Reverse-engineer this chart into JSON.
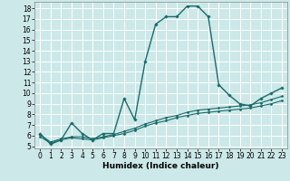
{
  "title": "",
  "xlabel": "Humidex (Indice chaleur)",
  "bg_color": "#cce8e8",
  "grid_color": "#b0d8d8",
  "line_color": "#1a6b6b",
  "xlim": [
    -0.5,
    23.5
  ],
  "ylim": [
    4.8,
    18.6
  ],
  "yticks": [
    5,
    6,
    7,
    8,
    9,
    10,
    11,
    12,
    13,
    14,
    15,
    16,
    17,
    18
  ],
  "xticks": [
    0,
    1,
    2,
    3,
    4,
    5,
    6,
    7,
    8,
    9,
    10,
    11,
    12,
    13,
    14,
    15,
    16,
    17,
    18,
    19,
    20,
    21,
    22,
    23
  ],
  "series": [
    {
      "x": [
        0,
        1,
        2,
        3,
        4,
        5,
        6,
        7,
        8,
        9,
        10,
        11,
        12,
        13,
        14,
        15,
        16,
        17,
        18,
        19,
        20,
        21,
        22,
        23
      ],
      "y": [
        6.2,
        5.2,
        5.6,
        7.2,
        6.2,
        5.6,
        6.2,
        6.2,
        9.5,
        7.5,
        13.0,
        16.5,
        17.2,
        17.2,
        18.2,
        18.2,
        17.2,
        10.8,
        9.8,
        9.0,
        8.8,
        9.5,
        10.0,
        10.5
      ],
      "marker": "D",
      "markersize": 1.8,
      "linewidth": 1.0
    },
    {
      "x": [
        0,
        1,
        2,
        3,
        4,
        5,
        6,
        7,
        8,
        9,
        10,
        11,
        12,
        13,
        14,
        15,
        16,
        17,
        18,
        19,
        20,
        21,
        22,
        23
      ],
      "y": [
        6.1,
        5.4,
        5.7,
        5.9,
        5.9,
        5.7,
        5.9,
        6.1,
        6.4,
        6.7,
        7.1,
        7.4,
        7.7,
        7.9,
        8.2,
        8.4,
        8.5,
        8.6,
        8.7,
        8.8,
        8.9,
        9.1,
        9.4,
        9.7
      ],
      "marker": "D",
      "markersize": 1.5,
      "linewidth": 0.8
    },
    {
      "x": [
        0,
        1,
        2,
        3,
        4,
        5,
        6,
        7,
        8,
        9,
        10,
        11,
        12,
        13,
        14,
        15,
        16,
        17,
        18,
        19,
        20,
        21,
        22,
        23
      ],
      "y": [
        5.9,
        5.3,
        5.6,
        5.8,
        5.7,
        5.6,
        5.8,
        6.0,
        6.2,
        6.5,
        6.9,
        7.2,
        7.4,
        7.7,
        7.9,
        8.1,
        8.2,
        8.3,
        8.4,
        8.5,
        8.6,
        8.8,
        9.0,
        9.3
      ],
      "marker": "D",
      "markersize": 1.5,
      "linewidth": 0.8
    }
  ],
  "tick_fontsize": 5.5,
  "xlabel_fontsize": 6.5
}
